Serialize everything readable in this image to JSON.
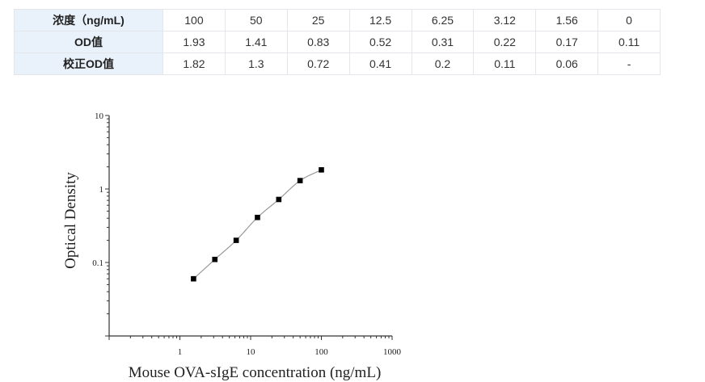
{
  "table": {
    "rows": [
      {
        "label": "浓度（ng/mL)",
        "cells": [
          "100",
          "50",
          "25",
          "12.5",
          "6.25",
          "3.12",
          "1.56",
          "0"
        ]
      },
      {
        "label": "OD值",
        "cells": [
          "1.93",
          "1.41",
          "0.83",
          "0.52",
          "0.31",
          "0.22",
          "0.17",
          "0.11"
        ]
      },
      {
        "label": "校正OD值",
        "cells": [
          "1.82",
          "1.3",
          "0.72",
          "0.41",
          "0.2",
          "0.11",
          "0.06",
          "-"
        ]
      }
    ]
  },
  "chart_data": {
    "type": "scatter",
    "xlabel": "Mouse OVA-sIgE concentration (ng/mL)",
    "ylabel": "Optical Density",
    "xscale": "log",
    "yscale": "log",
    "xlim": [
      0.1,
      1000
    ],
    "ylim": [
      0.01,
      10
    ],
    "xticks": [
      "1",
      "10",
      "100",
      "1000"
    ],
    "yticks": [
      "0.1",
      "1",
      "10"
    ],
    "x": [
      1.56,
      3.12,
      6.25,
      12.5,
      25,
      50,
      100
    ],
    "y": [
      0.06,
      0.11,
      0.2,
      0.41,
      0.72,
      1.3,
      1.82
    ],
    "fit_curve": true,
    "grid": false,
    "marker_color": "#000000",
    "curve_color": "#999999"
  }
}
